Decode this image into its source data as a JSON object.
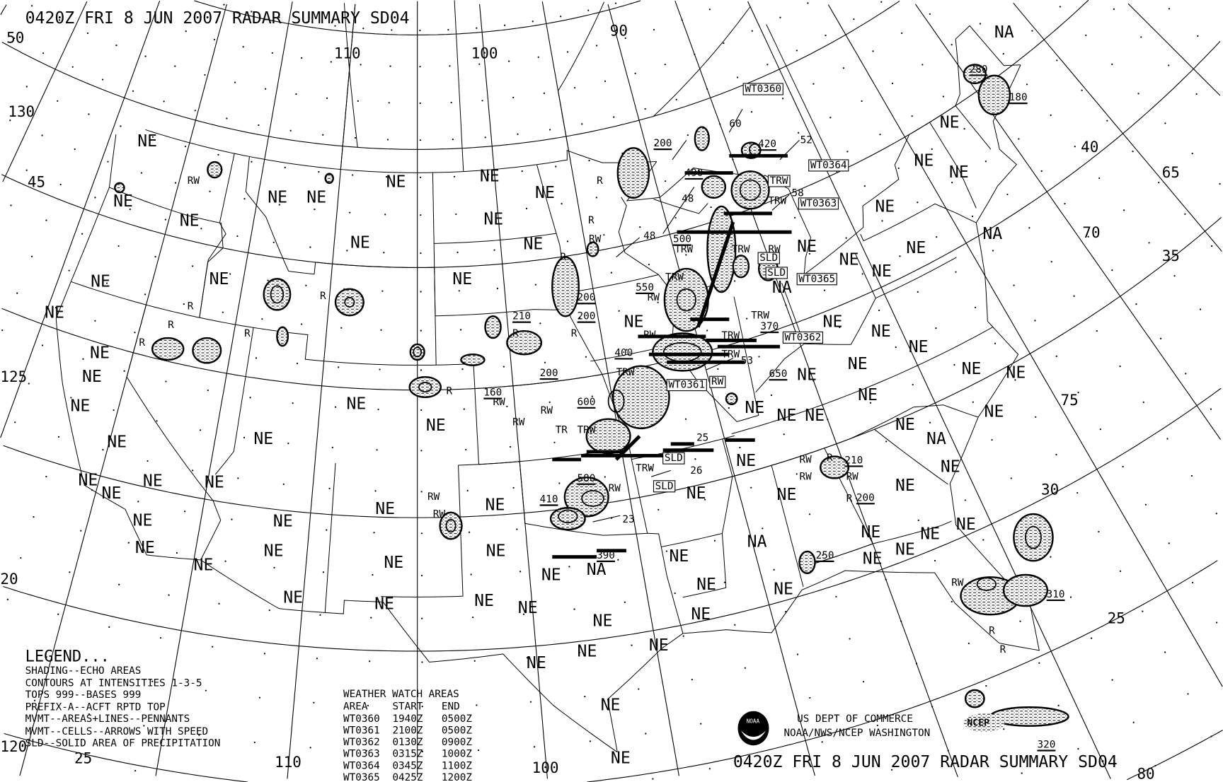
{
  "header": {
    "title": "0420Z FRI  8 JUN 2007 RADAR SUMMARY SD04"
  },
  "footer": {
    "title": "0420Z FRI  8 JUN 2007 RADAR SUMMARY SD04",
    "agency_line1": "US DEPT OF COMMERCE",
    "agency_line2": "NOAA/NWS/NCEP WASHINGTON",
    "noaa_logo_text": "NOAA",
    "ncep_logo_text": "NCEP"
  },
  "legend": {
    "title": "LEGEND...",
    "lines": [
      "SHADING--ECHO AREAS",
      "CONTOURS AT INTENSITIES 1-3-5",
      "TOPS 999--BASES 999",
      "PREFIX-A--ACFT RPTD TOP",
      "MVMT--AREAS+LINES--PENNANTS",
      "MVMT--CELLS--ARROWS WITH SPEED",
      "SLD--SOLID AREA OF PRECIPITATION"
    ]
  },
  "watch_table": {
    "title": "WEATHER WATCH AREAS",
    "headers": [
      "AREA",
      "START",
      "END"
    ],
    "rows": [
      [
        "WT0360",
        "1940Z",
        "0500Z"
      ],
      [
        "WT0361",
        "2100Z",
        "0500Z"
      ],
      [
        "WT0362",
        "0130Z",
        "0900Z"
      ],
      [
        "WT0363",
        "0315Z",
        "1000Z"
      ],
      [
        "WT0364",
        "0345Z",
        "1100Z"
      ],
      [
        "WT0365",
        "0425Z",
        "1200Z"
      ]
    ]
  },
  "graticule_labels": [
    "50",
    "130",
    "45",
    "125",
    "120",
    "25",
    "110",
    "100",
    "90",
    "110",
    "100",
    "40",
    "65",
    "70",
    "35",
    "75",
    "30",
    "25",
    "20",
    "80"
  ],
  "region_labels": [
    "NE",
    "NE",
    "NE",
    "NE",
    "NE",
    "NE",
    "NE",
    "NE",
    "NE",
    "NE",
    "NE",
    "NE",
    "NE",
    "NE",
    "NE",
    "NE",
    "NE",
    "NE",
    "NE",
    "NE",
    "NE",
    "NE",
    "NE",
    "NE",
    "NE",
    "NE",
    "NE",
    "NE",
    "NE",
    "NE",
    "NE",
    "NE",
    "NE",
    "NE",
    "NE",
    "NE",
    "NE",
    "NE",
    "NE",
    "NE",
    "NE",
    "NE",
    "NE",
    "NE",
    "NE",
    "NE",
    "NE",
    "NE",
    "NE",
    "NE",
    "NE",
    "NE",
    "NE",
    "NE",
    "NE",
    "NE",
    "NE",
    "NE",
    "NE",
    "NE",
    "NE",
    "NE",
    "NE",
    "NE",
    "NE",
    "NE",
    "NE",
    "NE",
    "NE",
    "NE",
    "NE",
    "NE",
    "NE",
    "NE",
    "NE",
    "NE",
    "NE",
    "NE",
    "NE",
    "NE",
    "NE",
    "NE",
    "NA",
    "NA",
    "NA",
    "NA",
    "NA",
    "NA"
  ],
  "watch_labels": [
    "WT0360",
    "WT0364",
    "WT0363",
    "WT0365",
    "WT0362",
    "WT0361"
  ],
  "boxed_labels": [
    "TRW",
    "SLD",
    "SLD",
    "SLD",
    "SLD",
    "RW"
  ],
  "tops": [
    "200",
    "420",
    "490",
    "500",
    "550",
    "210",
    "200",
    "200",
    "160",
    "200",
    "600",
    "580",
    "410",
    "390",
    "370",
    "650",
    "400",
    "280",
    "180",
    "210",
    "200",
    "250",
    "310",
    "320"
  ],
  "movement_speeds": [
    "60",
    "52",
    "48",
    "58",
    "48",
    "53",
    "25",
    "26",
    "23"
  ],
  "precip_types": [
    "RW",
    "R",
    "R",
    "RW",
    "R",
    "R",
    "R",
    "R",
    "R",
    "R",
    "R",
    "R",
    "R",
    "RW",
    "RW",
    "RW",
    "TR",
    "TRW",
    "TRW",
    "TRW",
    "TRW",
    "RW",
    "RW",
    "TRW",
    "RW",
    "TRW",
    "TRW",
    "TRW",
    "TRW",
    "RW",
    "RW",
    "RW",
    "TRW",
    "RW",
    "RW",
    "R",
    "RW",
    "R",
    "RW",
    "R",
    "R"
  ]
}
